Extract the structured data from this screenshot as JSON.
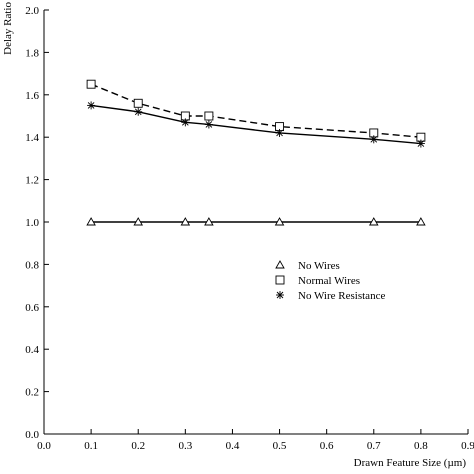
{
  "chart_data": {
    "type": "line",
    "xlabel": "Drawn Feature Size  (µm)",
    "ylabel": "Delay Ratio",
    "xlim": [
      0.0,
      0.9
    ],
    "ylim": [
      0.0,
      2.0
    ],
    "x_ticks": [
      "0.0",
      "0.1",
      "0.2",
      "0.3",
      "0.4",
      "0.5",
      "0.6",
      "0.7",
      "0.8",
      "0.9"
    ],
    "y_ticks": [
      "0.0",
      "0.2",
      "0.4",
      "0.6",
      "0.8",
      "1.0",
      "1.2",
      "1.4",
      "1.6",
      "1.8",
      "2.0"
    ],
    "grid": false,
    "legend_position": "center-right",
    "series": [
      {
        "name": "No Wires",
        "marker": "triangle",
        "line": "solid",
        "x": [
          0.1,
          0.2,
          0.3,
          0.35,
          0.5,
          0.7,
          0.8
        ],
        "y": [
          1.0,
          1.0,
          1.0,
          1.0,
          1.0,
          1.0,
          1.0
        ]
      },
      {
        "name": "Normal Wires",
        "marker": "square",
        "line": "dashed",
        "x": [
          0.1,
          0.2,
          0.3,
          0.35,
          0.5,
          0.7,
          0.8
        ],
        "y": [
          1.65,
          1.56,
          1.5,
          1.5,
          1.45,
          1.42,
          1.4
        ]
      },
      {
        "name": "No Wire Resistance",
        "marker": "asterisk",
        "line": "solid",
        "x": [
          0.1,
          0.2,
          0.3,
          0.35,
          0.5,
          0.7,
          0.8
        ],
        "y": [
          1.55,
          1.52,
          1.47,
          1.46,
          1.42,
          1.39,
          1.37
        ]
      }
    ]
  }
}
